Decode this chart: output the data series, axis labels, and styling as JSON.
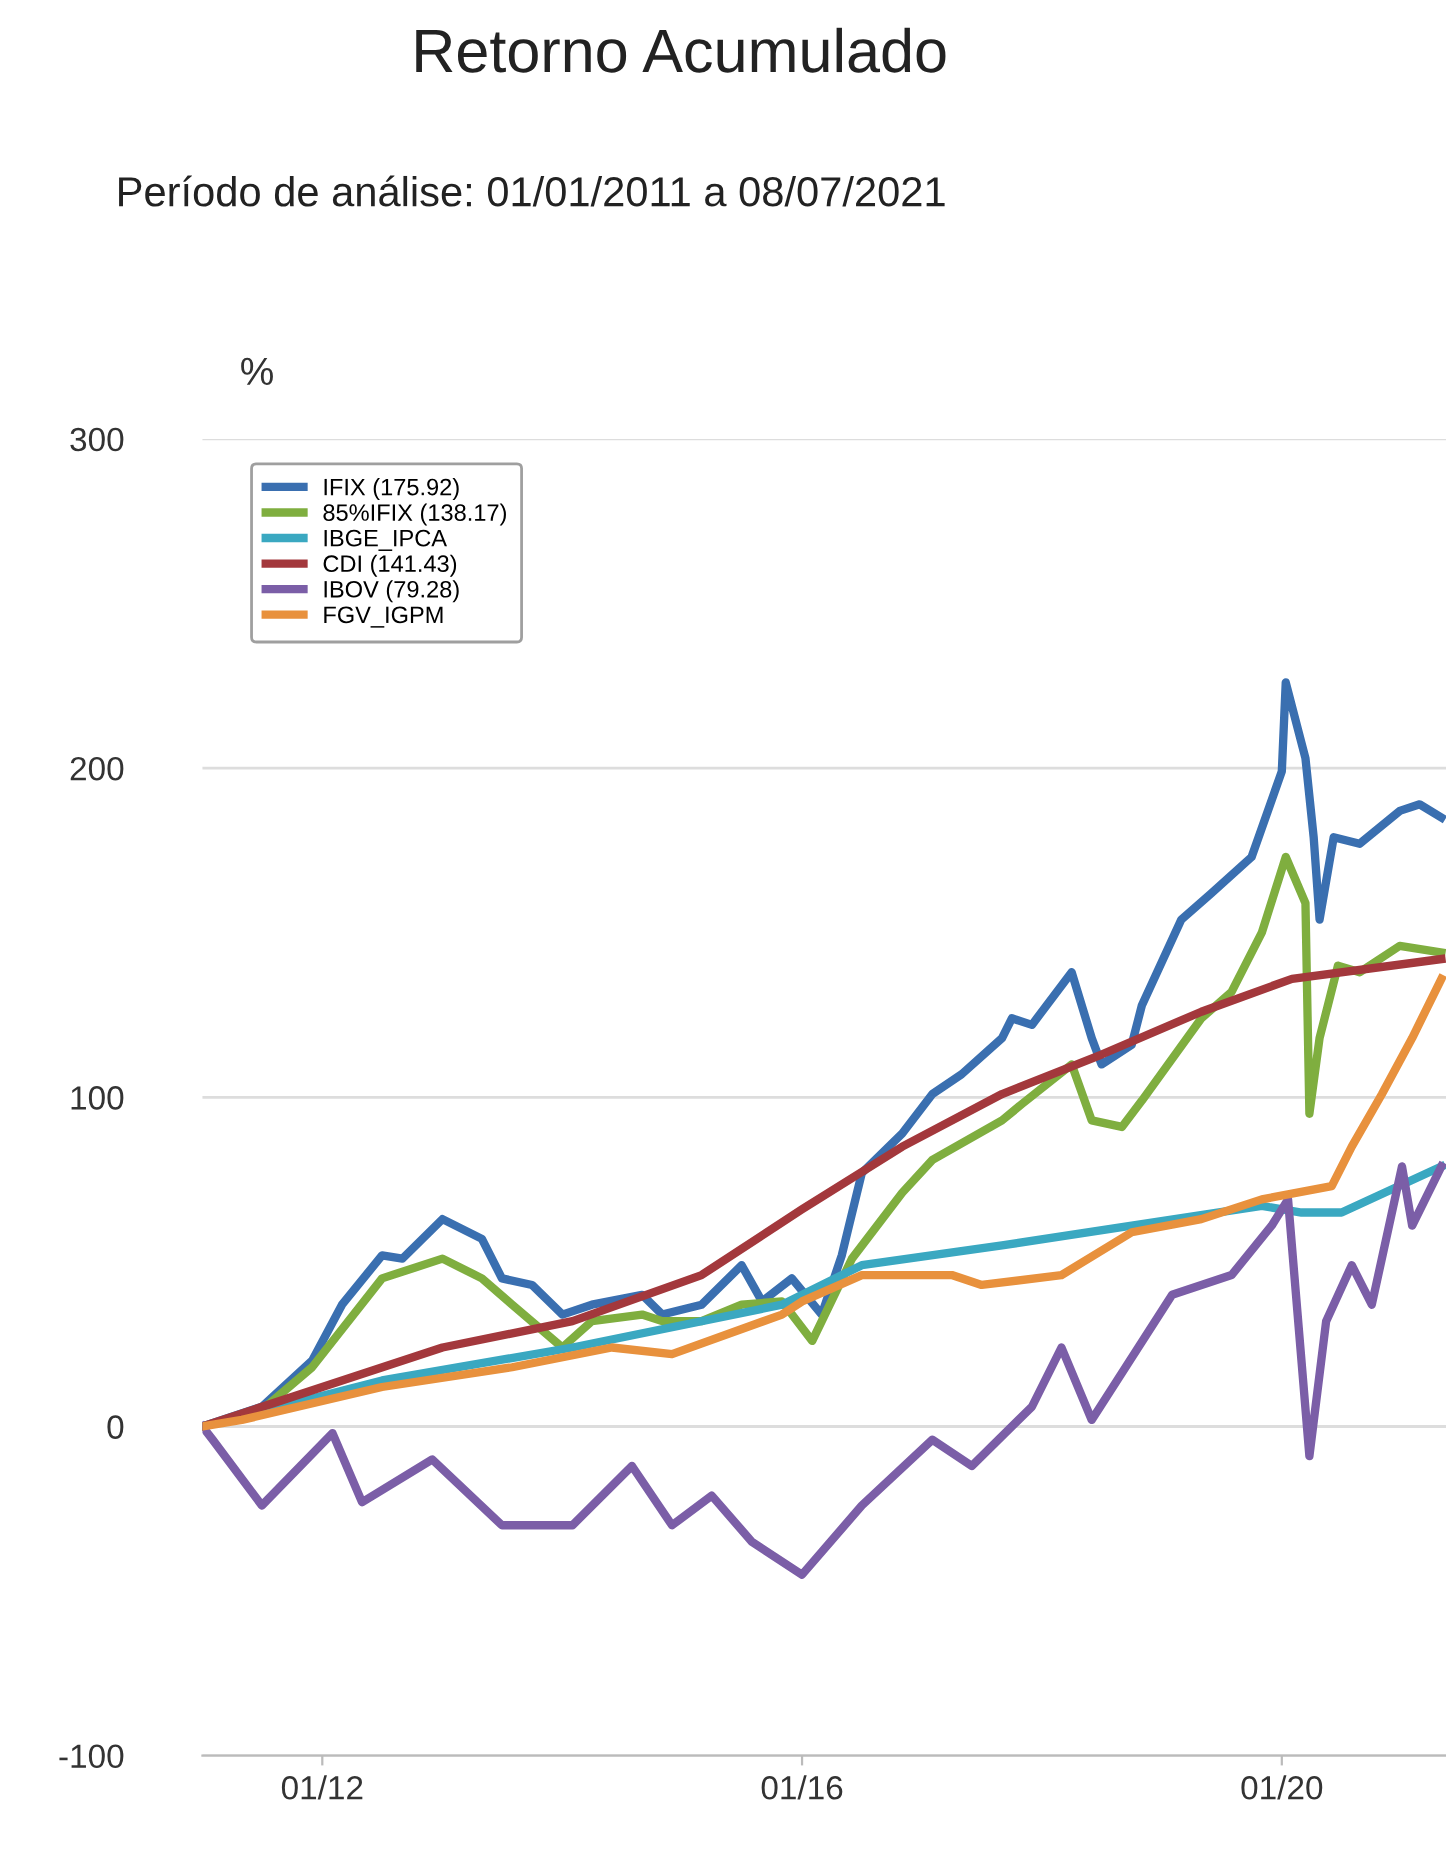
{
  "chart_data": {
    "type": "line",
    "title": "Retorno Acumulado",
    "subtitle": "Período de análise: 01/01/2011 a 08/07/2021",
    "ylabel": "%",
    "xlim": [
      "2011-01-01",
      "2021-05-15"
    ],
    "ylim": [
      -100,
      300
    ],
    "yticks": [
      -100,
      0,
      100,
      200,
      300
    ],
    "xticks": [
      {
        "value": "2012-01-01",
        "label": "01/12"
      },
      {
        "value": "2016-01-01",
        "label": "01/16"
      },
      {
        "value": "2020-01-01",
        "label": "01/20"
      }
    ],
    "grid": "y",
    "legend": "top left",
    "line_style": "solid",
    "marker": "none",
    "series": [
      {
        "name": "IFIX (175.92)",
        "color": "#3a6fb0",
        "x": [
          "2011-01-01",
          "2011-07-01",
          "2011-12-01",
          "2012-03-01",
          "2012-07-01",
          "2012-09-01",
          "2013-01-01",
          "2013-05-01",
          "2013-07-01",
          "2013-10-01",
          "2014-01-01",
          "2014-04-01",
          "2014-09-01",
          "2014-11-01",
          "2015-03-01",
          "2015-07-01",
          "2015-09-01",
          "2015-12-01",
          "2016-03-01",
          "2016-05-01",
          "2016-07-01",
          "2016-11-01",
          "2017-02-01",
          "2017-05-01",
          "2017-09-01",
          "2017-10-01",
          "2017-12-01",
          "2018-04-01",
          "2018-06-01",
          "2018-07-01",
          "2018-10-01",
          "2018-11-01",
          "2019-03-01",
          "2019-06-01",
          "2019-10-01",
          "2020-01-01",
          "2020-01-13",
          "2020-03-13",
          "2020-04-07",
          "2020-04-25",
          "2020-06-07",
          "2020-08-25",
          "2020-12-25",
          "2021-02-24",
          "2021-05-01"
        ],
        "values": [
          0,
          6,
          20,
          37,
          52,
          51,
          63,
          57,
          45,
          43,
          34,
          37,
          40,
          34,
          37,
          49,
          38,
          45,
          34,
          52,
          77,
          89,
          101,
          107,
          118,
          124,
          122,
          138,
          118,
          110,
          116,
          128,
          154,
          162,
          173,
          199,
          226,
          203,
          179,
          154,
          179,
          177,
          187,
          189,
          185
        ]
      },
      {
        "name": "85%IFIX (138.17)",
        "color": "#7fae3f",
        "x": [
          "2011-01-01",
          "2011-07-01",
          "2011-12-01",
          "2012-07-01",
          "2013-01-01",
          "2013-05-01",
          "2013-08-01",
          "2014-01-01",
          "2014-04-01",
          "2014-09-01",
          "2014-11-01",
          "2015-03-01",
          "2015-07-01",
          "2015-11-01",
          "2016-02-01",
          "2016-06-01",
          "2016-11-01",
          "2017-02-01",
          "2017-09-01",
          "2017-11-01",
          "2018-04-01",
          "2018-06-01",
          "2018-09-01",
          "2018-11-01",
          "2019-05-01",
          "2019-08-01",
          "2019-11-01",
          "2020-01-13",
          "2020-03-13",
          "2020-03-25",
          "2020-04-25",
          "2020-06-20",
          "2020-08-25",
          "2020-12-25",
          "2021-05-01"
        ],
        "values": [
          0,
          5,
          18,
          45,
          51,
          45,
          37,
          24,
          32,
          34,
          32,
          32,
          37,
          38,
          26,
          51,
          71,
          81,
          93,
          98,
          110,
          93,
          91,
          99,
          124,
          132,
          150,
          173,
          159,
          95,
          118,
          140,
          138,
          146,
          144
        ]
      },
      {
        "name": "IBGE_IPCA",
        "color": "#3aa8c1",
        "x": [
          "2011-01-01",
          "2012-07-01",
          "2014-02-01",
          "2015-11-01",
          "2016-07-01",
          "2017-09-01",
          "2018-10-01",
          "2019-11-01",
          "2020-03-01",
          "2020-07-01",
          "2021-05-01"
        ],
        "values": [
          0,
          14,
          24,
          37,
          49,
          55,
          61,
          67,
          65,
          65,
          79
        ]
      },
      {
        "name": "CDI (141.43)",
        "color": "#a3383c",
        "x": [
          "2011-01-01",
          "2012-01-01",
          "2013-01-01",
          "2014-02-01",
          "2015-03-01",
          "2016-01-01",
          "2016-11-01",
          "2017-09-01",
          "2018-07-01",
          "2019-05-01",
          "2020-02-01",
          "2021-05-01"
        ],
        "values": [
          0,
          12,
          24,
          32,
          46,
          66,
          85,
          101,
          113,
          126,
          136,
          142
        ]
      },
      {
        "name": "IBOV (79.28)",
        "color": "#7b5ea7",
        "x": [
          "2011-01-01",
          "2011-02-01",
          "2011-07-01",
          "2012-02-01",
          "2012-05-01",
          "2012-12-01",
          "2013-07-01",
          "2014-02-01",
          "2014-08-01",
          "2014-12-01",
          "2015-04-01",
          "2015-08-01",
          "2016-01-01",
          "2016-07-01",
          "2017-02-01",
          "2017-06-01",
          "2017-12-01",
          "2018-03-01",
          "2018-06-01",
          "2019-02-01",
          "2019-08-01",
          "2019-12-01",
          "2020-01-20",
          "2020-03-25",
          "2020-05-15",
          "2020-08-01",
          "2020-10-01",
          "2021-01-01",
          "2021-02-01",
          "2021-05-01"
        ],
        "values": [
          0,
          -4,
          -24,
          -2,
          -23,
          -10,
          -30,
          -30,
          -12,
          -30,
          -21,
          -35,
          -45,
          -24,
          -4,
          -12,
          6,
          24,
          2,
          40,
          46,
          61,
          69,
          -9,
          32,
          49,
          37,
          79,
          61,
          79
        ]
      },
      {
        "name": "FGV_IGPM",
        "color": "#e8913d",
        "x": [
          "2011-01-01",
          "2011-05-01",
          "2012-07-01",
          "2013-08-01",
          "2014-06-01",
          "2014-12-01",
          "2015-11-01",
          "2016-01-01",
          "2016-07-01",
          "2017-04-01",
          "2017-07-01",
          "2018-03-01",
          "2018-10-01",
          "2019-05-01",
          "2019-11-01",
          "2020-06-01",
          "2020-08-01",
          "2020-11-01",
          "2021-02-01",
          "2021-05-01"
        ],
        "values": [
          0,
          2,
          12,
          18,
          24,
          22,
          34,
          38,
          46,
          46,
          43,
          46,
          59,
          63,
          69,
          73,
          85,
          101,
          118,
          136
        ]
      }
    ]
  }
}
